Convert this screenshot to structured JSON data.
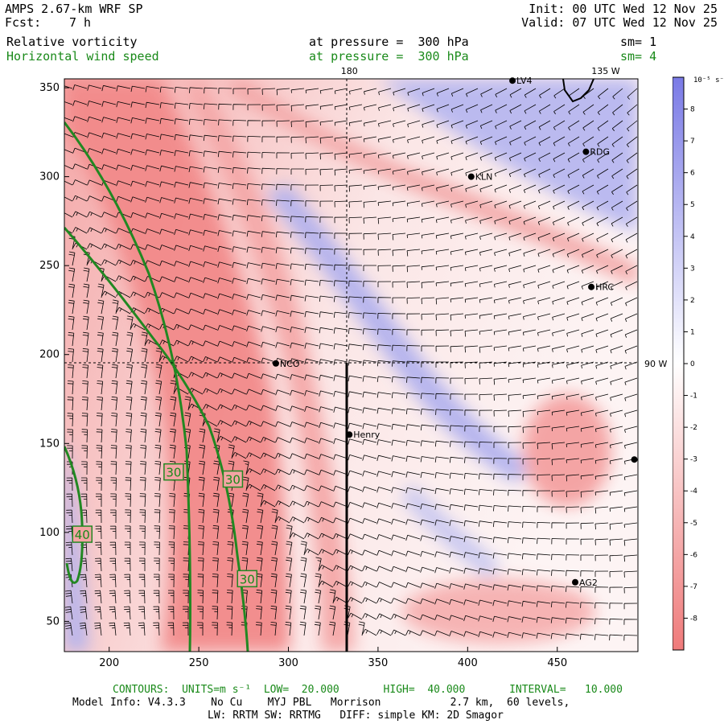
{
  "header": {
    "model": "AMPS 2.67-km WRF SP",
    "fcst_label": "Fcst:",
    "fcst_value": "7 h",
    "init": "Init: 00 UTC Wed 12 Nov 25",
    "valid": "Valid: 07 UTC Wed 12 Nov 25",
    "field1": "Relative vorticity",
    "field1_level": "at pressure =  300 hPa",
    "field1_sm": "sm= 1",
    "field2": "Horizontal wind speed",
    "field2_level": "at pressure =  300 hPa",
    "field2_sm": "sm= 4"
  },
  "map": {
    "x_ticks": [
      200,
      250,
      300,
      350,
      400,
      450
    ],
    "y_ticks": [
      50,
      100,
      150,
      200,
      250,
      300,
      350
    ],
    "x_range": [
      175,
      495
    ],
    "y_range": [
      33,
      355
    ],
    "meridian_labels": [
      {
        "text": "180",
        "x": 334
      },
      {
        "text": "135 W",
        "x": 477
      }
    ],
    "parallel_label": {
      "text": "90 W",
      "y": 195
    },
    "stations": [
      {
        "name": "LV4",
        "x": 425,
        "y": 354
      },
      {
        "name": "RDG",
        "x": 466,
        "y": 314
      },
      {
        "name": "KLN",
        "x": 402,
        "y": 300
      },
      {
        "name": "HRC",
        "x": 469,
        "y": 238
      },
      {
        "name": "NCO",
        "x": 293,
        "y": 195
      },
      {
        "name": "Henry",
        "x": 334,
        "y": 155
      },
      {
        "name": "AG2",
        "x": 460,
        "y": 72
      },
      {
        "name": "",
        "x": 493,
        "y": 141
      }
    ],
    "contour_labels": [
      {
        "text": "40",
        "x": 185,
        "y": 99
      },
      {
        "text": "30",
        "x": 236,
        "y": 134
      },
      {
        "text": "30",
        "x": 269,
        "y": 130
      },
      {
        "text": "30",
        "x": 277,
        "y": 74
      }
    ]
  },
  "colorbar": {
    "unit_label": "10⁻⁵ s⁻¹",
    "ticks": [
      "8",
      "7",
      "6",
      "5",
      "4",
      "3",
      "2",
      "1",
      "0",
      "-1",
      "-2",
      "-3",
      "-4",
      "-5",
      "-6",
      "-7",
      "-8"
    ]
  },
  "footer": {
    "contours": "CONTOURS:  UNITS=m s⁻¹  LOW=  20.000       HIGH=  40.000       INTERVAL=   10.000",
    "model_info": "Model Info: V4.3.3    No Cu    MYJ PBL   Morrison           2.7 km,  60 levels,",
    "physics": "LW: RRTM SW: RRTMG   DIFF: simple KM: 2D Smagor"
  },
  "colors": {
    "red": "#f08080",
    "blue": "#8080ee",
    "contour": "#228822",
    "label_text": "#1a8a1a"
  }
}
